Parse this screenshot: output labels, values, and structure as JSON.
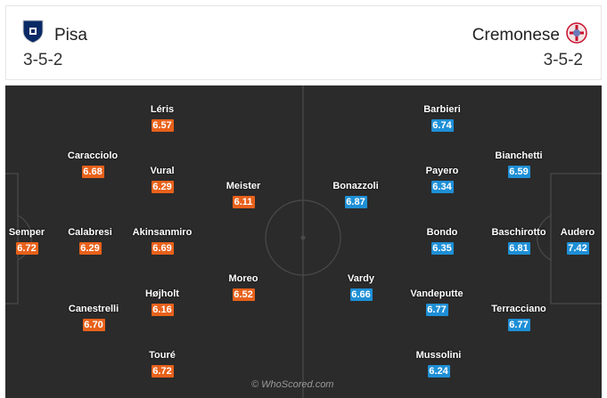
{
  "home": {
    "name": "Pisa",
    "formation": "3-5-2",
    "crest_color": "#0a2a66",
    "rating_color": "#e8611a"
  },
  "away": {
    "name": "Cremonese",
    "formation": "3-5-2",
    "crest_color": "#c8102e",
    "rating_color": "#1e8fd6"
  },
  "watermark": "© WhoScored.com",
  "pitch_color": "#2b2b2b",
  "players": [
    {
      "id": "semper",
      "team": "home",
      "name": "Semper",
      "rating": "6.72"
    },
    {
      "id": "caracciolo",
      "team": "home",
      "name": "Caracciolo",
      "rating": "6.68"
    },
    {
      "id": "calabresi",
      "team": "home",
      "name": "Calabresi",
      "rating": "6.29"
    },
    {
      "id": "canestrelli",
      "team": "home",
      "name": "Canestrelli",
      "rating": "6.70"
    },
    {
      "id": "leris",
      "team": "home",
      "name": "Léris",
      "rating": "6.57"
    },
    {
      "id": "vural",
      "team": "home",
      "name": "Vural",
      "rating": "6.29"
    },
    {
      "id": "akinsanmiro",
      "team": "home",
      "name": "Akinsanmiro",
      "rating": "6.69"
    },
    {
      "id": "hojholt",
      "team": "home",
      "name": "Højholt",
      "rating": "6.16"
    },
    {
      "id": "toure",
      "team": "home",
      "name": "Touré",
      "rating": "6.72"
    },
    {
      "id": "meister",
      "team": "home",
      "name": "Meister",
      "rating": "6.11"
    },
    {
      "id": "moreo",
      "team": "home",
      "name": "Moreo",
      "rating": "6.52"
    },
    {
      "id": "bonazzoli",
      "team": "away",
      "name": "Bonazzoli",
      "rating": "6.87"
    },
    {
      "id": "vardy",
      "team": "away",
      "name": "Vardy",
      "rating": "6.66"
    },
    {
      "id": "barbieri",
      "team": "away",
      "name": "Barbieri",
      "rating": "6.74"
    },
    {
      "id": "payero",
      "team": "away",
      "name": "Payero",
      "rating": "6.34"
    },
    {
      "id": "bondo",
      "team": "away",
      "name": "Bondo",
      "rating": "6.35"
    },
    {
      "id": "vandeputte",
      "team": "away",
      "name": "Vandeputte",
      "rating": "6.77"
    },
    {
      "id": "mussolini",
      "team": "away",
      "name": "Mussolini",
      "rating": "6.24"
    },
    {
      "id": "bianchetti",
      "team": "away",
      "name": "Bianchetti",
      "rating": "6.59"
    },
    {
      "id": "baschirotto",
      "team": "away",
      "name": "Baschirotto",
      "rating": "6.81"
    },
    {
      "id": "terracciano",
      "team": "away",
      "name": "Terracciano",
      "rating": "6.77"
    },
    {
      "id": "audero",
      "team": "away",
      "name": "Audero",
      "rating": "7.42"
    }
  ]
}
